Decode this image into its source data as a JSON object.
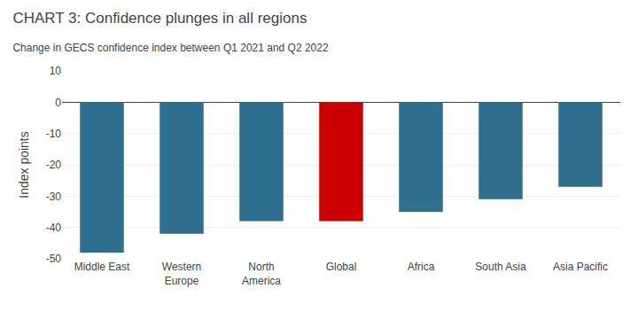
{
  "chart_data": {
    "type": "bar",
    "title": "CHART 3: Confidence plunges in all regions",
    "subtitle": "Change in GECS confidence index between Q1 2021 and Q2 2022",
    "ylabel": "Index points",
    "categories": [
      "Middle East",
      "Western\nEurope",
      "North\nAmerica",
      "Global",
      "Africa",
      "South Asia",
      "Asia Pacific"
    ],
    "values": [
      -48,
      -42,
      -38,
      -38,
      -35,
      -31,
      -27
    ],
    "colors": [
      "#2e6e8e",
      "#2e6e8e",
      "#2e6e8e",
      "#cc0000",
      "#2e6e8e",
      "#2e6e8e",
      "#2e6e8e"
    ],
    "ylim": [
      -50,
      10
    ],
    "yticks": [
      -50,
      -40,
      -30,
      -20,
      -10,
      0,
      10
    ],
    "grid": true
  }
}
